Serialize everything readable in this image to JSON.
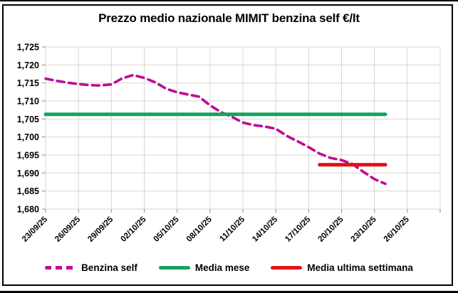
{
  "title": "Prezzo medio nazionale MIMIT benzina self €/lt",
  "chart_data": {
    "type": "line",
    "title": "Prezzo medio nazionale MIMIT benzina self €/lt",
    "xlabel": "",
    "ylabel": "",
    "grid": true,
    "legend_position": "bottom",
    "ylim": [
      1680,
      1725
    ],
    "y_ticks": [
      1680,
      1685,
      1690,
      1695,
      1700,
      1705,
      1710,
      1715,
      1720,
      1725
    ],
    "y_tick_labels": [
      "1,680",
      "1,685",
      "1,690",
      "1,695",
      "1,700",
      "1,705",
      "1,710",
      "1,715",
      "1,720",
      "1,725"
    ],
    "x_tick_labels": [
      "23/09/25",
      "26/09/25",
      "29/09/25",
      "02/10/25",
      "05/10/25",
      "08/10/25",
      "11/10/25",
      "14/10/25",
      "17/10/25",
      "20/10/25",
      "23/10/25",
      "26/10/25"
    ],
    "tick_days": [
      0,
      3,
      6,
      9,
      12,
      15,
      18,
      21,
      24,
      27,
      30,
      33
    ],
    "x_max_day": 36,
    "x": [
      "23/09/25",
      "24/09/25",
      "25/09/25",
      "26/09/25",
      "27/09/25",
      "28/09/25",
      "29/09/25",
      "30/09/25",
      "01/10/25",
      "02/10/25",
      "03/10/25",
      "04/10/25",
      "05/10/25",
      "06/10/25",
      "07/10/25",
      "08/10/25",
      "09/10/25",
      "10/10/25",
      "11/10/25",
      "12/10/25",
      "13/10/25",
      "14/10/25",
      "15/10/25",
      "16/10/25",
      "17/10/25",
      "18/10/25",
      "19/10/25",
      "20/10/25",
      "21/10/25",
      "22/10/25",
      "23/10/25",
      "24/10/25"
    ],
    "series": [
      {
        "name": "Benzina self",
        "style": "dashed",
        "color": "#BE0C93",
        "values": [
          1716.2,
          1715.6,
          1715.1,
          1714.7,
          1714.4,
          1714.3,
          1714.6,
          1716.3,
          1717.2,
          1716.4,
          1715.2,
          1713.4,
          1712.4,
          1711.8,
          1711.2,
          1708.8,
          1706.9,
          1705.6,
          1704.0,
          1703.3,
          1702.9,
          1702.3,
          1700.3,
          1698.8,
          1697.2,
          1695.4,
          1694.2,
          1693.6,
          1692.5,
          1690.3,
          1688.3,
          1687.0
        ]
      },
      {
        "name": "Media mese",
        "style": "solid",
        "color": "#16A35D",
        "value": 1706.3,
        "start_day": 0,
        "end_day": 31
      },
      {
        "name": "Media ultima settimana",
        "style": "solid",
        "color": "#E31212",
        "value": 1692.3,
        "start_day": 25,
        "end_day": 31
      }
    ]
  }
}
